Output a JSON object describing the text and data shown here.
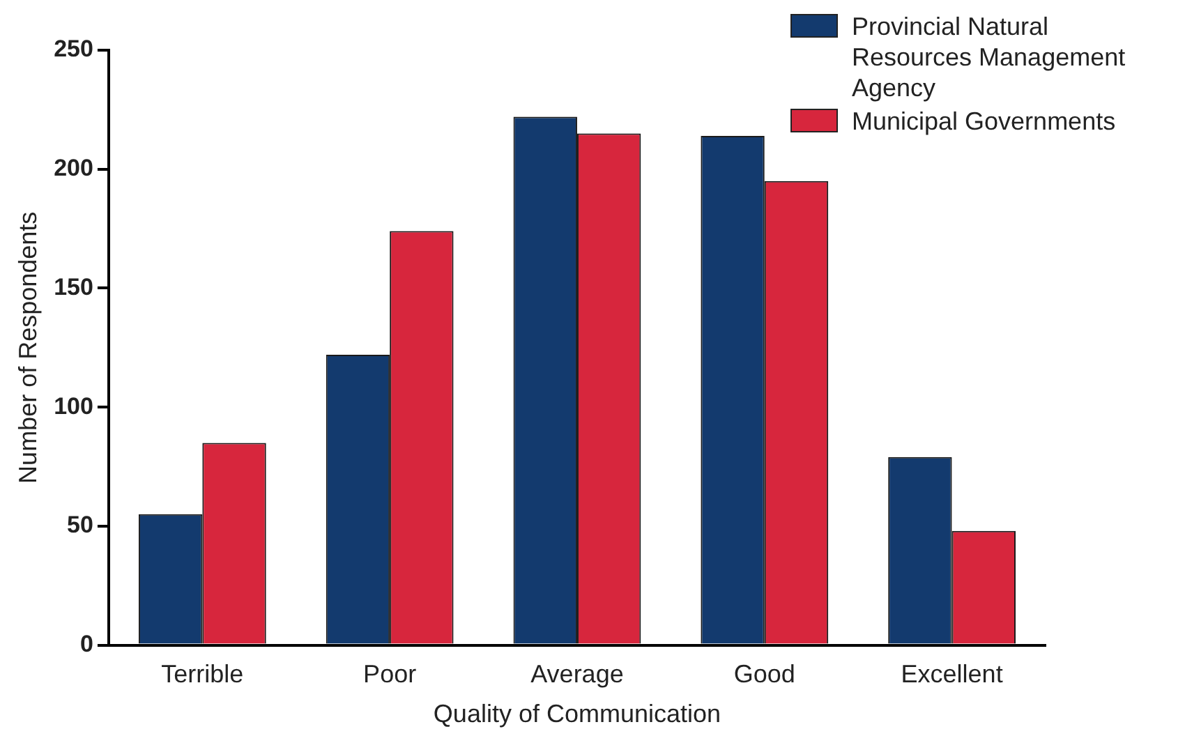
{
  "chart_data": {
    "type": "bar",
    "xlabel": "Quality of Communication",
    "ylabel": "Number of Respondents",
    "categories": [
      "Terrible",
      "Poor",
      "Average",
      "Good",
      "Excellent"
    ],
    "series": [
      {
        "name": "Provincial Natural Resources Management Agency",
        "color": "#133a6e",
        "values": [
          55,
          122,
          222,
          214,
          79
        ]
      },
      {
        "name": "Municipal Governments",
        "color": "#d7263d",
        "values": [
          85,
          174,
          215,
          195,
          48
        ]
      }
    ],
    "ylim": [
      0,
      250
    ],
    "yticks": [
      0,
      50,
      100,
      150,
      200,
      250
    ],
    "grid": false,
    "legend": "top right"
  }
}
